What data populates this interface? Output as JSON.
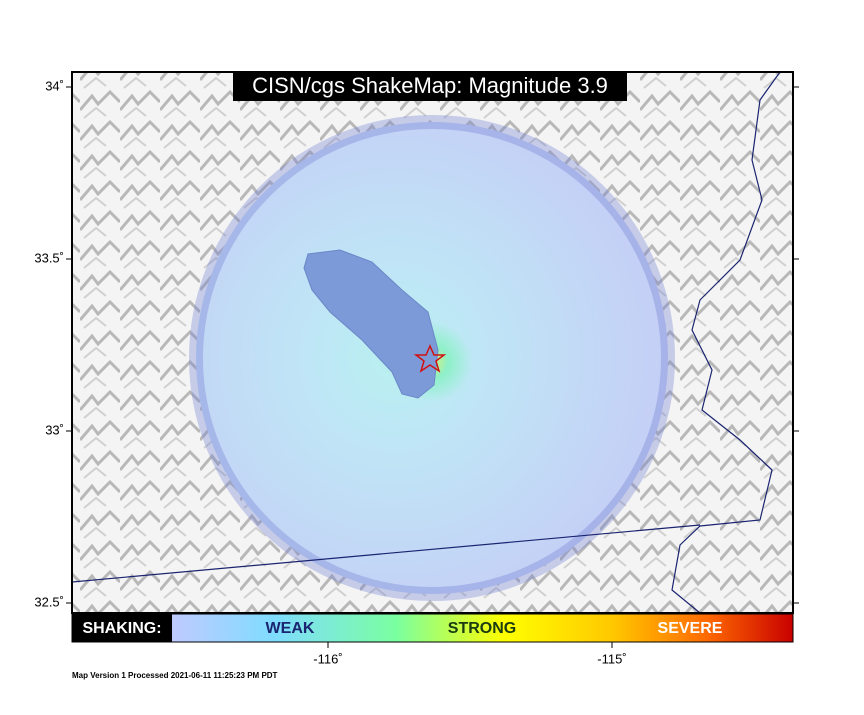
{
  "title": "CISN/cgs ShakeMap: Magnitude 3.9",
  "lat_ticks": [
    {
      "value": 34,
      "label": "34˚"
    },
    {
      "value": 33.5,
      "label": "33.5˚"
    },
    {
      "value": 33,
      "label": "33˚"
    },
    {
      "value": 32.5,
      "label": "32.5˚"
    }
  ],
  "lon_ticks": [
    {
      "value": -116,
      "label": "-116˚"
    },
    {
      "value": -115,
      "label": "-115˚"
    }
  ],
  "legend": {
    "heading": "SHAKING:",
    "levels": [
      "WEAK",
      "STRONG",
      "SEVERE"
    ]
  },
  "footer": "Map Version 1 Processed 2021-06-11 11:25:23 PM PDT"
}
